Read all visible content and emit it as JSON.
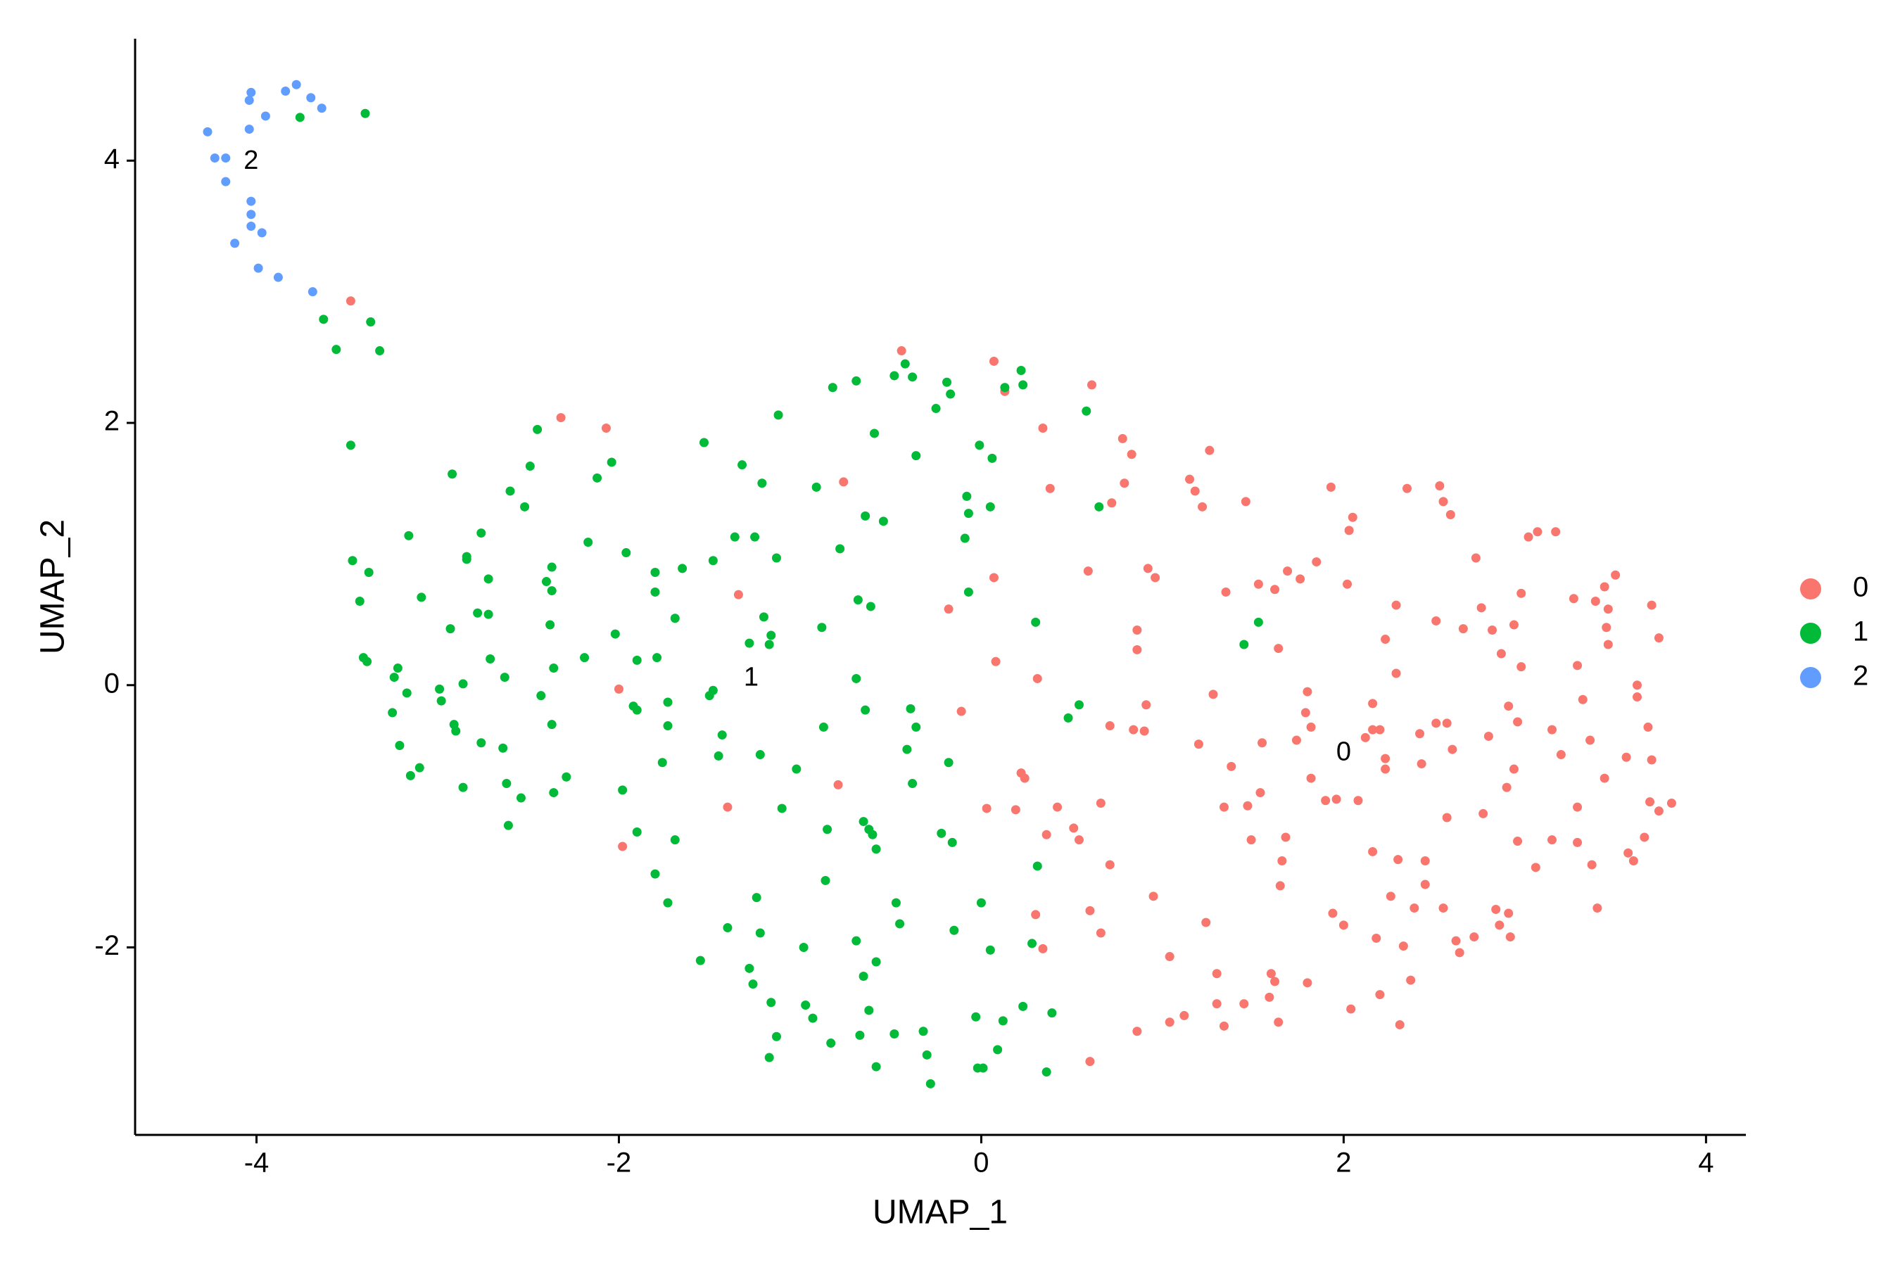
{
  "chart_data": {
    "type": "scatter",
    "xlabel": "UMAP_1",
    "ylabel": "UMAP_2",
    "xlim": [
      -4.67,
      4.22
    ],
    "ylim": [
      -3.43,
      4.93
    ],
    "xticks": [
      -4,
      -2,
      0,
      2,
      4
    ],
    "yticks": [
      -2,
      0,
      2,
      4
    ],
    "grid": false,
    "legend": "right",
    "series": [
      {
        "name": "0",
        "color": "#F8766D",
        "x": [
          -3.48,
          -2.32,
          -2.07,
          -2.0,
          -1.98,
          -1.34,
          -1.4,
          -0.79,
          -0.76,
          -0.44,
          -0.18,
          0.07,
          0.08,
          -0.11,
          0.07,
          0.13,
          0.34,
          0.38,
          0.22,
          0.24,
          0.03,
          0.19,
          0.31,
          0.42,
          0.36,
          0.51,
          0.54,
          0.66,
          0.6,
          0.66,
          0.3,
          0.34,
          0.72,
          0.61,
          0.78,
          0.83,
          0.79,
          0.86,
          0.86,
          0.91,
          0.9,
          0.84,
          0.71,
          0.59,
          0.92,
          0.96,
          0.71,
          0.95,
          0.86,
          0.6,
          1.04,
          1.15,
          1.26,
          1.18,
          1.22,
          1.35,
          1.28,
          1.2,
          1.04,
          1.12,
          1.24,
          1.46,
          1.38,
          1.3,
          1.3,
          1.34,
          1.34,
          1.49,
          1.53,
          1.62,
          1.64,
          1.54,
          1.55,
          1.47,
          1.66,
          1.68,
          1.65,
          1.69,
          1.76,
          1.85,
          1.8,
          1.79,
          1.82,
          1.74,
          1.82,
          1.9,
          1.96,
          2.08,
          1.6,
          1.62,
          1.45,
          1.59,
          1.64,
          1.8,
          1.94,
          2.0,
          2.05,
          2.03,
          2.02,
          1.93,
          2.16,
          2.16,
          2.12,
          2.2,
          2.23,
          2.16,
          2.18,
          2.26,
          2.2,
          2.04,
          2.31,
          2.29,
          2.23,
          2.35,
          2.29,
          2.23,
          2.43,
          2.3,
          2.39,
          2.45,
          2.45,
          2.55,
          2.37,
          2.33,
          2.51,
          2.53,
          2.51,
          2.57,
          2.6,
          2.42,
          2.57,
          2.62,
          2.64,
          2.72,
          2.84,
          2.86,
          2.92,
          2.91,
          2.59,
          2.55,
          2.73,
          2.76,
          2.66,
          2.82,
          2.8,
          2.77,
          2.91,
          2.96,
          2.96,
          2.87,
          2.94,
          3.02,
          2.98,
          2.98,
          2.94,
          2.9,
          3.06,
          3.15,
          3.29,
          3.29,
          3.37,
          3.4,
          3.15,
          3.2,
          3.36,
          3.32,
          3.07,
          3.17,
          3.27,
          3.29,
          3.39,
          3.46,
          3.45,
          3.46,
          3.56,
          3.44,
          3.57,
          3.66,
          3.69,
          3.74,
          3.81,
          3.62,
          3.68,
          3.7,
          3.7,
          3.74,
          3.5,
          3.44,
          3.62,
          3.6
        ],
        "y": [
          2.93,
          2.04,
          1.96,
          -0.03,
          -1.23,
          0.69,
          -0.93,
          -0.76,
          1.55,
          2.55,
          0.58,
          2.47,
          0.18,
          -0.2,
          0.82,
          2.24,
          1.96,
          1.5,
          -0.67,
          -0.71,
          -0.94,
          -0.95,
          0.05,
          -0.93,
          -1.14,
          -1.09,
          -1.18,
          -0.9,
          -1.72,
          -1.89,
          -1.75,
          -2.01,
          1.39,
          2.29,
          1.88,
          1.76,
          1.54,
          0.42,
          0.27,
          -0.15,
          -0.35,
          -0.34,
          -0.31,
          0.87,
          0.89,
          0.82,
          -1.37,
          -1.61,
          -2.64,
          -2.87,
          -2.07,
          1.57,
          1.79,
          1.48,
          1.36,
          0.71,
          -0.07,
          -0.45,
          -2.57,
          -2.52,
          -1.81,
          1.4,
          -0.62,
          -2.43,
          -2.2,
          -2.6,
          -0.93,
          -1.18,
          0.77,
          0.73,
          0.28,
          -0.82,
          -0.44,
          -0.92,
          -1.34,
          -1.16,
          -1.53,
          0.87,
          0.81,
          0.94,
          -0.05,
          -0.21,
          -0.32,
          -0.42,
          -0.71,
          -0.88,
          -0.87,
          -0.88,
          -2.2,
          -2.26,
          -2.43,
          -2.38,
          -2.57,
          -2.27,
          -1.74,
          -1.83,
          1.28,
          1.18,
          0.77,
          1.51,
          -0.14,
          -0.34,
          -0.4,
          -0.34,
          -0.64,
          -1.27,
          -1.93,
          -1.61,
          -2.36,
          -2.47,
          -2.59,
          0.61,
          0.35,
          1.5,
          0.09,
          -0.56,
          -0.6,
          -1.33,
          -1.7,
          -1.34,
          -1.52,
          -1.7,
          -2.25,
          -1.99,
          0.49,
          1.52,
          -0.29,
          -0.29,
          -0.49,
          -0.37,
          -1.01,
          -1.95,
          -2.04,
          -1.92,
          -1.71,
          -1.83,
          -1.92,
          -1.74,
          1.3,
          1.4,
          0.97,
          0.59,
          0.43,
          0.42,
          -0.39,
          -0.98,
          -0.16,
          -0.28,
          -1.19,
          0.24,
          0.46,
          1.13,
          0.7,
          0.14,
          -0.64,
          -0.78,
          -1.39,
          -1.18,
          -1.2,
          -0.93,
          -1.37,
          -1.7,
          -0.34,
          -0.53,
          -0.42,
          -0.11,
          1.17,
          1.17,
          0.66,
          0.15,
          0.64,
          0.58,
          0.44,
          0.31,
          -0.55,
          -0.71,
          -1.28,
          -1.16,
          -0.89,
          -0.96,
          -0.9,
          0.0,
          -0.32,
          -0.57,
          0.61,
          0.36,
          0.84,
          0.75,
          -0.09,
          -1.34
        ]
      },
      {
        "name": "1",
        "color": "#00BA38",
        "x": [
          -3.76,
          -3.4,
          -3.63,
          -3.37,
          -3.56,
          -3.32,
          -3.48,
          -3.47,
          -3.38,
          -3.43,
          -3.41,
          -3.39,
          -3.16,
          -3.09,
          -3.22,
          -3.24,
          -3.17,
          -3.25,
          -3.21,
          -3.15,
          -3.1,
          -2.92,
          -2.93,
          -2.99,
          -2.98,
          -2.86,
          -2.91,
          -2.86,
          -2.9,
          -2.84,
          -2.84,
          -2.76,
          -2.78,
          -2.72,
          -2.72,
          -2.71,
          -2.76,
          -2.63,
          -2.64,
          -2.62,
          -2.61,
          -2.54,
          -2.6,
          -2.52,
          -2.49,
          -2.45,
          -2.4,
          -2.37,
          -2.37,
          -2.38,
          -2.36,
          -2.43,
          -2.37,
          -2.36,
          -2.29,
          -2.17,
          -2.12,
          -2.04,
          -2.19,
          -2.02,
          -1.96,
          -1.9,
          -1.8,
          -1.8,
          -1.79,
          -1.92,
          -1.9,
          -1.73,
          -1.73,
          -1.76,
          -1.98,
          -1.9,
          -1.8,
          -1.73,
          -1.69,
          -1.69,
          -1.65,
          -1.53,
          -1.48,
          -1.48,
          -1.5,
          -1.43,
          -1.45,
          -1.32,
          -1.36,
          -1.25,
          -1.21,
          -1.2,
          -1.13,
          -1.16,
          -1.17,
          -1.28,
          -1.22,
          -1.02,
          -1.1,
          -1.4,
          -1.55,
          -1.24,
          -1.22,
          -1.28,
          -1.26,
          -1.16,
          -1.13,
          -1.17,
          -0.98,
          -0.97,
          -0.93,
          -0.83,
          -1.12,
          -0.91,
          -0.82,
          -0.69,
          -0.48,
          -0.59,
          -0.64,
          -0.54,
          -0.78,
          -0.68,
          -0.61,
          -0.88,
          -0.69,
          -0.64,
          -0.87,
          -0.38,
          -0.42,
          -0.19,
          -0.17,
          -0.25,
          -0.36,
          -0.01,
          0.06,
          -0.08,
          -0.07,
          -0.09,
          0.05,
          -0.07,
          -0.39,
          -0.36,
          -0.41,
          -0.38,
          -0.18,
          -0.65,
          -0.62,
          -0.6,
          -0.85,
          -0.86,
          -0.58,
          -0.47,
          -0.45,
          -0.58,
          -0.69,
          -0.65,
          -0.62,
          -0.67,
          -0.48,
          -0.58,
          -0.32,
          -0.3,
          -0.28,
          -0.22,
          -0.16,
          0.0,
          -0.15,
          0.05,
          -0.03,
          0.12,
          0.23,
          0.09,
          -0.02,
          0.01,
          0.13,
          0.22,
          0.23,
          0.3,
          0.54,
          0.48,
          0.31,
          0.28,
          0.39,
          0.36,
          0.58,
          0.65,
          1.45,
          1.53
        ],
        "y": [
          4.33,
          4.36,
          2.79,
          2.77,
          2.56,
          2.55,
          1.83,
          0.95,
          0.86,
          0.64,
          0.21,
          0.18,
          1.14,
          0.67,
          0.13,
          0.06,
          -0.06,
          -0.21,
          -0.46,
          -0.69,
          -0.63,
          1.61,
          0.43,
          -0.03,
          -0.12,
          0.01,
          -0.3,
          -0.78,
          -0.35,
          0.98,
          0.96,
          1.16,
          0.55,
          0.81,
          0.54,
          0.2,
          -0.44,
          0.06,
          -0.48,
          -0.75,
          -1.07,
          -0.86,
          1.48,
          1.36,
          1.67,
          1.95,
          0.79,
          0.9,
          0.72,
          0.46,
          0.13,
          -0.08,
          -0.3,
          -0.82,
          -0.7,
          1.09,
          1.58,
          1.7,
          0.21,
          0.39,
          1.01,
          0.19,
          0.86,
          0.71,
          0.21,
          -0.16,
          -0.19,
          -0.13,
          -0.31,
          -0.59,
          -0.8,
          -1.12,
          -1.44,
          -1.66,
          -1.18,
          0.51,
          0.89,
          1.85,
          0.95,
          -0.04,
          -0.08,
          -0.38,
          -0.54,
          1.68,
          1.13,
          1.13,
          1.54,
          0.52,
          0.97,
          0.38,
          0.31,
          0.32,
          -0.53,
          -0.64,
          -0.94,
          -1.85,
          -2.1,
          -1.62,
          -1.89,
          -2.16,
          -2.28,
          -2.42,
          -2.68,
          -2.84,
          -2.0,
          -2.44,
          -2.54,
          -2.73,
          2.06,
          1.51,
          2.27,
          2.32,
          2.36,
          1.92,
          1.29,
          1.25,
          1.04,
          0.65,
          0.6,
          0.44,
          0.05,
          -0.19,
          -0.32,
          2.35,
          2.45,
          2.31,
          2.22,
          2.11,
          1.75,
          1.83,
          1.73,
          1.44,
          1.31,
          1.12,
          1.36,
          0.71,
          -0.18,
          -0.32,
          -0.49,
          -0.75,
          -0.59,
          -1.04,
          -1.1,
          -1.14,
          -1.1,
          -1.49,
          -1.25,
          -1.66,
          -1.82,
          -2.11,
          -1.95,
          -2.22,
          -2.48,
          -2.67,
          -2.66,
          -2.91,
          -2.64,
          -2.82,
          -3.04,
          -1.13,
          -1.2,
          -1.66,
          -1.87,
          -2.02,
          -2.53,
          -2.56,
          -2.45,
          -2.78,
          -2.92,
          -2.92,
          2.27,
          2.4,
          2.29,
          0.48,
          -0.15,
          -0.25,
          -1.38,
          -1.97,
          -2.5,
          -2.95,
          2.09,
          1.36,
          0.31,
          0.48
        ]
      },
      {
        "name": "2",
        "color": "#619CFF",
        "x": [
          -4.03,
          -4.04,
          -3.84,
          -3.78,
          -3.7,
          -3.64,
          -3.95,
          -4.04,
          -4.27,
          -4.23,
          -4.17,
          -4.17,
          -4.03,
          -4.03,
          -4.03,
          -3.97,
          -4.12,
          -3.99,
          -3.88,
          -3.69
        ],
        "y": [
          4.52,
          4.46,
          4.53,
          4.58,
          4.48,
          4.4,
          4.34,
          4.24,
          4.22,
          4.02,
          4.02,
          3.84,
          3.69,
          3.59,
          3.5,
          3.45,
          3.37,
          3.18,
          3.11,
          3.0
        ]
      }
    ],
    "annotations": [
      {
        "text": "0",
        "x": 2.0,
        "y": -0.52
      },
      {
        "text": "1",
        "x": -1.27,
        "y": 0.05
      },
      {
        "text": "2",
        "x": -4.03,
        "y": 3.99
      }
    ]
  }
}
